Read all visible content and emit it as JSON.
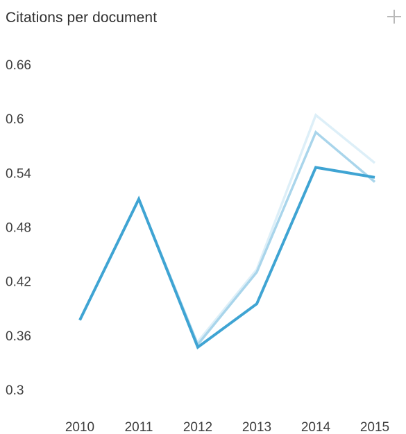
{
  "widget": {
    "title": "Citations per document",
    "add_icon": "plus-icon"
  },
  "chart_data": {
    "type": "line",
    "title": "Citations per document",
    "xlabel": "",
    "ylabel": "",
    "categories": [
      "2010",
      "2011",
      "2012",
      "2013",
      "2014",
      "2015"
    ],
    "y_ticks": [
      "0.66",
      "0.6",
      "0.54",
      "0.48",
      "0.42",
      "0.36",
      "0.3"
    ],
    "ylim": [
      0.3,
      0.66
    ],
    "grid": false,
    "legend": "none",
    "series": [
      {
        "color": "#ddeff8",
        "values": [
          null,
          null,
          0.353,
          0.433,
          0.604,
          0.551
        ]
      },
      {
        "color": "#a9d5eb",
        "values": [
          0.377,
          0.511,
          0.35,
          0.43,
          0.585,
          0.53
        ]
      },
      {
        "color": "#3fa4d3",
        "values": [
          0.377,
          0.511,
          0.347,
          0.395,
          0.546,
          0.535
        ]
      }
    ]
  }
}
